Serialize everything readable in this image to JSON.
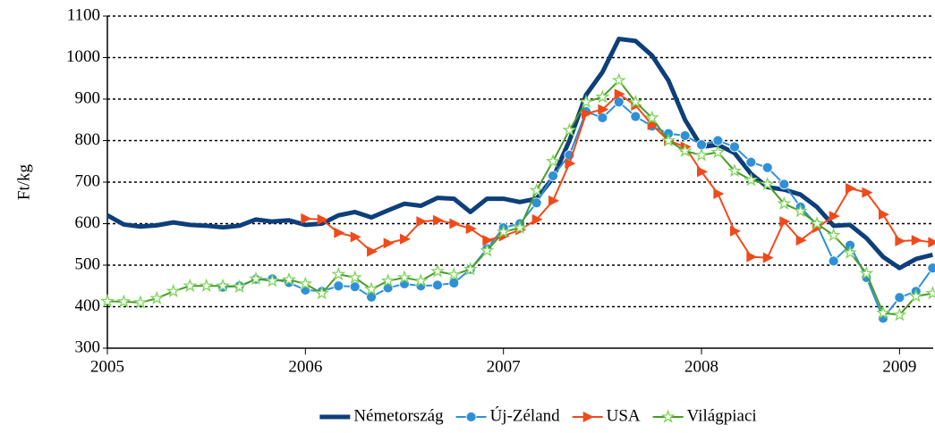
{
  "chart_data": {
    "type": "line",
    "y_label": "Ft/kg",
    "x": [
      2005,
      2005.083,
      2005.167,
      2005.25,
      2005.333,
      2005.417,
      2005.5,
      2005.583,
      2005.667,
      2005.75,
      2005.833,
      2005.917,
      2006,
      2006.083,
      2006.167,
      2006.25,
      2006.333,
      2006.417,
      2006.5,
      2006.583,
      2006.667,
      2006.75,
      2006.833,
      2006.917,
      2007,
      2007.083,
      2007.167,
      2007.25,
      2007.333,
      2007.417,
      2007.5,
      2007.583,
      2007.667,
      2007.75,
      2007.833,
      2007.917,
      2008,
      2008.083,
      2008.167,
      2008.25,
      2008.333,
      2008.417,
      2008.5,
      2008.583,
      2008.667,
      2008.75,
      2008.833,
      2008.917,
      2009,
      2009.083,
      2009.167
    ],
    "series": [
      {
        "name": "Németország",
        "color": "#0d3f7a",
        "line_width": 5,
        "marker": "none",
        "values": [
          620,
          598,
          593,
          596,
          603,
          597,
          595,
          591,
          595,
          610,
          605,
          608,
          597,
          600,
          620,
          628,
          615,
          632,
          648,
          643,
          662,
          660,
          628,
          660,
          660,
          652,
          660,
          710,
          800,
          910,
          965,
          1045,
          1040,
          1005,
          945,
          850,
          785,
          790,
          770,
          720,
          688,
          682,
          670,
          640,
          595,
          597,
          565,
          520,
          493,
          515,
          525
        ]
      },
      {
        "name": "Új-Zéland",
        "color": "#2f90d8",
        "line_width": 2,
        "marker": "circle",
        "values": [
          null,
          null,
          null,
          null,
          null,
          null,
          null,
          447,
          450,
          466,
          467,
          458,
          440,
          437,
          450,
          448,
          423,
          445,
          455,
          450,
          452,
          457,
          490,
          540,
          590,
          600,
          650,
          715,
          765,
          870,
          855,
          893,
          858,
          835,
          817,
          812,
          790,
          800,
          785,
          748,
          735,
          695,
          640,
          597,
          510,
          548,
          470,
          372,
          422,
          437,
          493
        ]
      },
      {
        "name": "USA",
        "color": "#f04a1a",
        "line_width": 2,
        "marker": "triangle",
        "values": [
          null,
          null,
          null,
          null,
          null,
          null,
          null,
          null,
          null,
          null,
          null,
          null,
          612,
          610,
          578,
          568,
          533,
          553,
          563,
          605,
          608,
          600,
          588,
          560,
          570,
          585,
          610,
          655,
          745,
          865,
          875,
          912,
          885,
          838,
          800,
          785,
          725,
          672,
          582,
          520,
          518,
          605,
          560,
          590,
          618,
          685,
          675,
          622,
          558,
          560,
          555
        ]
      },
      {
        "name": "Világpiaci",
        "color": "#4a9a2a",
        "marker_color": "#7fd45a",
        "line_width": 2,
        "marker": "star",
        "values": [
          413,
          412,
          410,
          420,
          437,
          450,
          450,
          450,
          448,
          467,
          462,
          465,
          455,
          432,
          478,
          470,
          442,
          462,
          470,
          462,
          485,
          477,
          490,
          535,
          580,
          590,
          680,
          750,
          825,
          893,
          905,
          945,
          893,
          855,
          800,
          775,
          765,
          772,
          727,
          705,
          695,
          648,
          630,
          600,
          572,
          530,
          480,
          385,
          380,
          425,
          432
        ]
      }
    ],
    "xlim": [
      2005,
      2009.17
    ],
    "xticks": [
      2005,
      2006,
      2007,
      2008,
      2009
    ],
    "ylim": [
      300,
      1100
    ],
    "yticks": [
      300,
      400,
      500,
      600,
      700,
      800,
      900,
      1000,
      1100
    ],
    "grid": true,
    "legend": "bottom"
  }
}
